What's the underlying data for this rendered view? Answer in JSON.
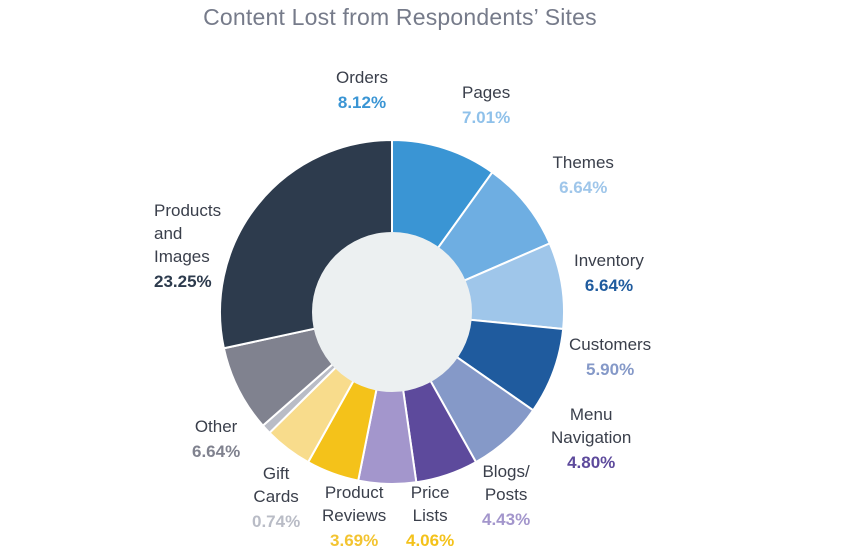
{
  "chart_data": {
    "type": "pie",
    "title": "Content Lost from Respondents’ Sites",
    "donut": true,
    "slices": [
      {
        "label": [
          "Orders"
        ],
        "value": 8.12,
        "value_label": "8.12%",
        "color": "#3a95d4",
        "label_color": "#3a95d4"
      },
      {
        "label": [
          "Pages"
        ],
        "value": 7.01,
        "value_label": "7.01%",
        "color": "#6eaee2",
        "label_color": "#8fc1ea"
      },
      {
        "label": [
          "Themes"
        ],
        "value": 6.64,
        "value_label": "6.64%",
        "color": "#9fc6ea",
        "label_color": "#9fc6ea"
      },
      {
        "label": [
          "Inventory"
        ],
        "value": 6.64,
        "value_label": "6.64%",
        "color": "#1f5b9e",
        "label_color": "#1f5b9e"
      },
      {
        "label": [
          "Customers"
        ],
        "value": 5.9,
        "value_label": "5.90%",
        "color": "#8599c8",
        "label_color": "#8599c8"
      },
      {
        "label": [
          "Menu",
          "Navigation"
        ],
        "value": 4.8,
        "value_label": "4.80%",
        "color": "#5d4a9c",
        "label_color": "#5d4a9c"
      },
      {
        "label": [
          "Blogs/",
          "Posts"
        ],
        "value": 4.43,
        "value_label": "4.43%",
        "color": "#a396cc",
        "label_color": "#a396cc"
      },
      {
        "label": [
          "Price",
          "Lists"
        ],
        "value": 4.06,
        "value_label": "4.06%",
        "color": "#f4c21a",
        "label_color": "#f4c21a"
      },
      {
        "label": [
          "Product",
          "Reviews"
        ],
        "value": 3.69,
        "value_label": "3.69%",
        "color": "#f8dc8c",
        "label_color": "#f3c431"
      },
      {
        "label": [
          "Gift",
          "Cards"
        ],
        "value": 0.74,
        "value_label": "0.74%",
        "color": "#b9bcc6",
        "label_color": "#b9bcc6"
      },
      {
        "label": [
          "Other"
        ],
        "value": 6.64,
        "value_label": "6.64%",
        "color": "#80828f",
        "label_color": "#80828f"
      },
      {
        "label": [
          "Products",
          "and",
          "Images"
        ],
        "value": 23.25,
        "value_label": "23.25%",
        "color": "#2d3b4d",
        "label_color": "#2d3b4d"
      }
    ],
    "center_color": "#ecf0f1",
    "legend": "none"
  }
}
